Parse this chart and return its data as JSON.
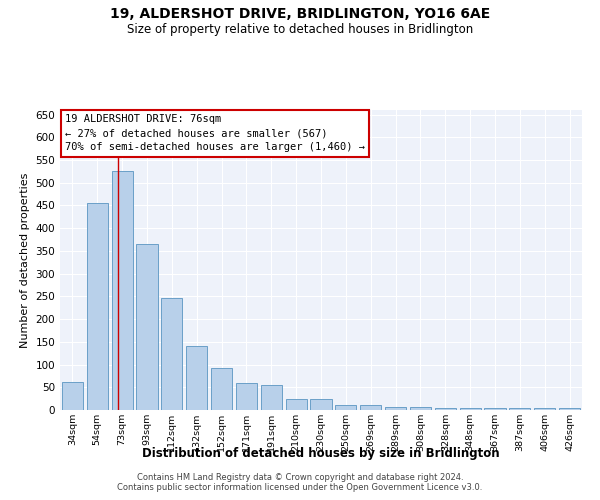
{
  "title": "19, ALDERSHOT DRIVE, BRIDLINGTON, YO16 6AE",
  "subtitle": "Size of property relative to detached houses in Bridlington",
  "xlabel": "Distribution of detached houses by size in Bridlington",
  "ylabel": "Number of detached properties",
  "categories": [
    "34sqm",
    "54sqm",
    "73sqm",
    "93sqm",
    "112sqm",
    "132sqm",
    "152sqm",
    "171sqm",
    "191sqm",
    "210sqm",
    "230sqm",
    "250sqm",
    "269sqm",
    "289sqm",
    "308sqm",
    "328sqm",
    "348sqm",
    "367sqm",
    "387sqm",
    "406sqm",
    "426sqm"
  ],
  "values": [
    62,
    455,
    525,
    365,
    247,
    140,
    92,
    60,
    55,
    25,
    24,
    10,
    12,
    7,
    6,
    5,
    4,
    4,
    4,
    5,
    4
  ],
  "bar_color": "#b8d0ea",
  "bar_edge_color": "#6a9fc8",
  "marker_line_color": "#cc0000",
  "annotation_text": "19 ALDERSHOT DRIVE: 76sqm\n← 27% of detached houses are smaller (567)\n70% of semi-detached houses are larger (1,460) →",
  "annotation_box_color": "#ffffff",
  "annotation_box_edge": "#cc0000",
  "ylim": [
    0,
    660
  ],
  "yticks": [
    0,
    50,
    100,
    150,
    200,
    250,
    300,
    350,
    400,
    450,
    500,
    550,
    600,
    650
  ],
  "background_color": "#eef2fa",
  "grid_color": "#ffffff",
  "footer_line1": "Contains HM Land Registry data © Crown copyright and database right 2024.",
  "footer_line2": "Contains public sector information licensed under the Open Government Licence v3.0."
}
